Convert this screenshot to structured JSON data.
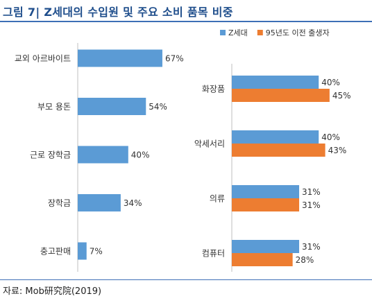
{
  "header": {
    "title": "그림 7| Z세대의 수입원 및 주요 소비 품목 비중"
  },
  "footer": {
    "source": "자료: Mob研究院(2019)"
  },
  "colors": {
    "accent": "#1f4e8c",
    "series_blue": "#5b9bd5",
    "series_orange": "#ed7d31",
    "axis": "#bfbfbf"
  },
  "chart_data": [
    {
      "type": "bar",
      "orientation": "horizontal",
      "categories": [
        "교외 아르바이트",
        "부모 용돈",
        "근로 장학금",
        "장학금",
        "충고판매"
      ],
      "values": [
        67,
        54,
        40,
        34,
        7
      ],
      "value_suffix": "%",
      "xlim": [
        0,
        100
      ],
      "grid": false
    },
    {
      "type": "bar",
      "orientation": "horizontal",
      "categories": [
        "화장품",
        "악세서리",
        "의류",
        "컴퓨터"
      ],
      "series": [
        {
          "name": "Z세대",
          "values": [
            40,
            40,
            31,
            31
          ],
          "color": "#5b9bd5"
        },
        {
          "name": "95년도 이전 출생자",
          "values": [
            45,
            43,
            31,
            28
          ],
          "color": "#ed7d31"
        }
      ],
      "value_suffix": "%",
      "xlim": [
        0,
        100
      ],
      "legend": "top",
      "grid": false
    }
  ]
}
